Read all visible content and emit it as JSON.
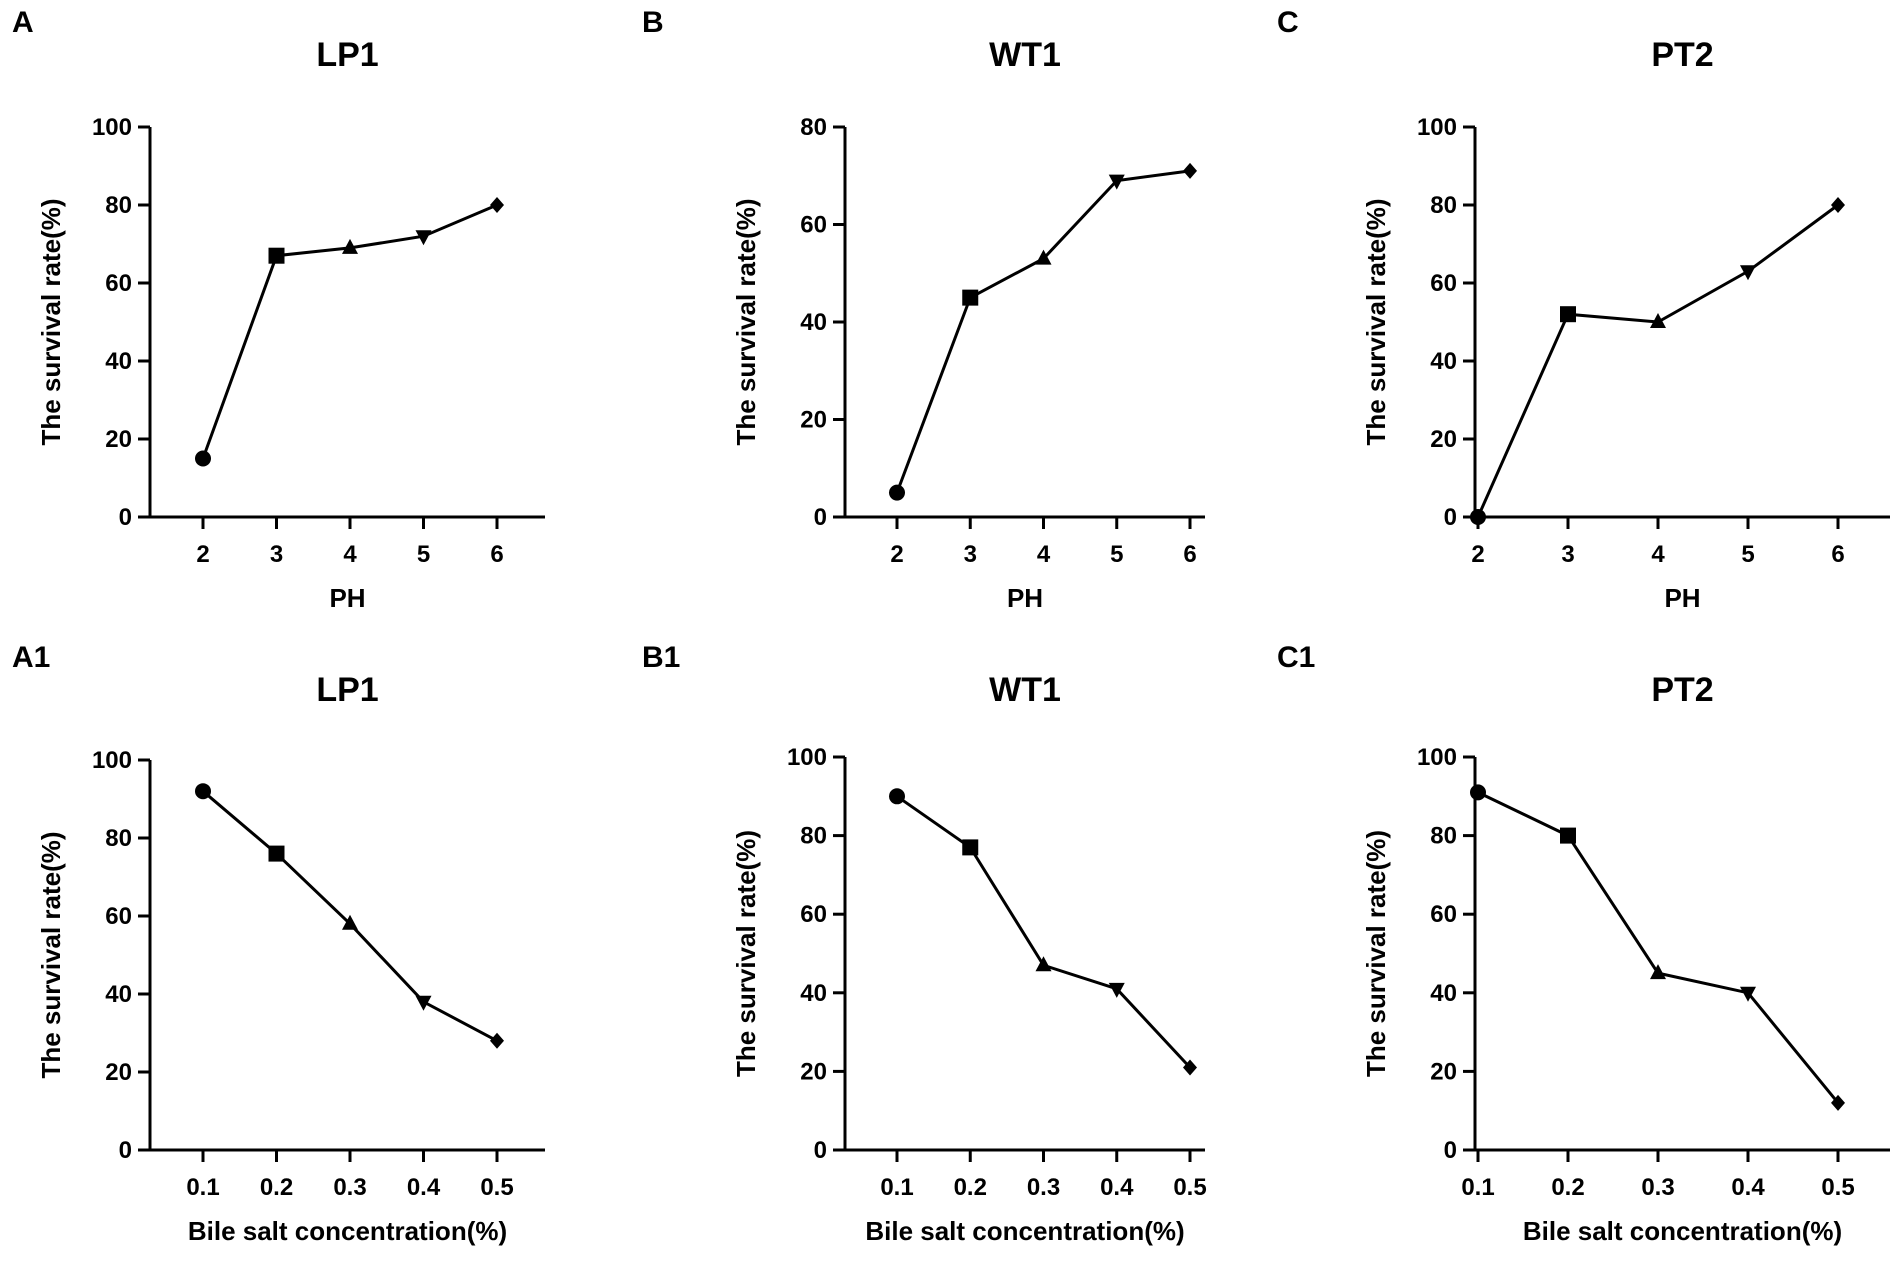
{
  "chart_data": [
    {
      "panel": "A",
      "type": "line",
      "title": "LP1",
      "xlabel": "PH",
      "ylabel": "The survival rate(%)",
      "categories": [
        "2",
        "3",
        "4",
        "5",
        "6"
      ],
      "values": [
        15,
        67,
        69,
        72,
        80
      ],
      "markers": [
        "circle",
        "square",
        "triangle-up",
        "triangle-down",
        "diamond"
      ],
      "ylim": [
        0,
        100
      ],
      "yticks": [
        0,
        20,
        40,
        60,
        80,
        100
      ]
    },
    {
      "panel": "B",
      "type": "line",
      "title": "WT1",
      "xlabel": "PH",
      "ylabel": "The survival rate(%)",
      "categories": [
        "2",
        "3",
        "4",
        "5",
        "6"
      ],
      "values": [
        5,
        45,
        53,
        69,
        71
      ],
      "markers": [
        "circle",
        "square",
        "triangle-up",
        "triangle-down",
        "diamond"
      ],
      "ylim": [
        0,
        80
      ],
      "yticks": [
        0,
        20,
        40,
        60,
        80
      ]
    },
    {
      "panel": "C",
      "type": "line",
      "title": "PT2",
      "xlabel": "PH",
      "ylabel": "The survival rate(%)",
      "categories": [
        "2",
        "3",
        "4",
        "5",
        "6"
      ],
      "values": [
        0,
        52,
        50,
        63,
        80
      ],
      "markers": [
        "circle",
        "square",
        "triangle-up",
        "triangle-down",
        "diamond"
      ],
      "ylim": [
        0,
        100
      ],
      "yticks": [
        0,
        20,
        40,
        60,
        80,
        100
      ]
    },
    {
      "panel": "A1",
      "type": "line",
      "title": "LP1",
      "xlabel": "Bile salt concentration(%)",
      "ylabel": "The survival rate(%)",
      "categories": [
        "0.1",
        "0.2",
        "0.3",
        "0.4",
        "0.5"
      ],
      "values": [
        92,
        76,
        58,
        38,
        28
      ],
      "markers": [
        "circle",
        "square",
        "triangle-up",
        "triangle-down",
        "diamond"
      ],
      "ylim": [
        0,
        100
      ],
      "yticks": [
        0,
        20,
        40,
        60,
        80,
        100
      ]
    },
    {
      "panel": "B1",
      "type": "line",
      "title": "WT1",
      "xlabel": "Bile salt concentration(%)",
      "ylabel": "The survival rate(%)",
      "categories": [
        "0.1",
        "0.2",
        "0.3",
        "0.4",
        "0.5"
      ],
      "values": [
        90,
        77,
        47,
        41,
        21
      ],
      "markers": [
        "circle",
        "square",
        "triangle-up",
        "triangle-down",
        "diamond"
      ],
      "ylim": [
        0,
        100
      ],
      "yticks": [
        0,
        20,
        40,
        60,
        80,
        100
      ]
    },
    {
      "panel": "C1",
      "type": "line",
      "title": "PT2",
      "xlabel": "Bile salt concentration(%)",
      "ylabel": "The survival rate(%)",
      "categories": [
        "0.1",
        "0.2",
        "0.3",
        "0.4",
        "0.5"
      ],
      "values": [
        91,
        80,
        45,
        40,
        12
      ],
      "markers": [
        "circle",
        "square",
        "triangle-up",
        "triangle-down",
        "diamond"
      ],
      "ylim": [
        0,
        100
      ],
      "yticks": [
        0,
        20,
        40,
        60,
        80,
        100
      ]
    }
  ]
}
